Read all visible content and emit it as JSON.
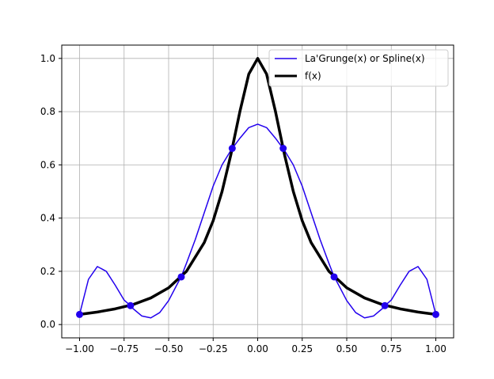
{
  "chart_data": {
    "type": "line",
    "title": "",
    "xlabel": "",
    "ylabel": "",
    "xlim": [
      -1.1,
      1.1
    ],
    "ylim": [
      -0.05,
      1.05
    ],
    "grid": true,
    "legend_position": "top-right",
    "x_ticks": [
      -1.0,
      -0.75,
      -0.5,
      -0.25,
      0.0,
      0.25,
      0.5,
      0.75,
      1.0
    ],
    "x_tick_labels": [
      "−1.00",
      "−0.75",
      "−0.50",
      "−0.25",
      "0.00",
      "0.25",
      "0.50",
      "0.75",
      "1.00"
    ],
    "y_ticks": [
      0.0,
      0.2,
      0.4,
      0.6,
      0.8,
      1.0
    ],
    "y_tick_labels": [
      "0.0",
      "0.2",
      "0.4",
      "0.6",
      "0.8",
      "1.0"
    ],
    "series": [
      {
        "name": "La'Grunge(x) or Spline(x)",
        "color": "#2200ee",
        "line_width": "thin",
        "x": [
          -1.0,
          -0.95,
          -0.9,
          -0.85,
          -0.8,
          -0.75,
          -0.714,
          -0.7,
          -0.65,
          -0.6,
          -0.55,
          -0.5,
          -0.45,
          -0.429,
          -0.4,
          -0.35,
          -0.3,
          -0.25,
          -0.2,
          -0.15,
          -0.143,
          -0.1,
          -0.05,
          0.0,
          0.05,
          0.1,
          0.143,
          0.15,
          0.2,
          0.25,
          0.3,
          0.35,
          0.4,
          0.429,
          0.45,
          0.5,
          0.55,
          0.6,
          0.65,
          0.7,
          0.714,
          0.75,
          0.8,
          0.85,
          0.9,
          0.95,
          1.0
        ],
        "y": [
          0.038,
          0.17,
          0.218,
          0.2,
          0.148,
          0.092,
          0.071,
          0.06,
          0.032,
          0.025,
          0.045,
          0.09,
          0.154,
          0.18,
          0.23,
          0.32,
          0.42,
          0.52,
          0.6,
          0.655,
          0.661,
          0.7,
          0.74,
          0.753,
          0.74,
          0.7,
          0.661,
          0.655,
          0.6,
          0.52,
          0.42,
          0.32,
          0.23,
          0.18,
          0.154,
          0.09,
          0.045,
          0.025,
          0.032,
          0.06,
          0.071,
          0.092,
          0.148,
          0.2,
          0.218,
          0.17,
          0.038
        ]
      },
      {
        "name": "f(x)",
        "color": "#000000",
        "line_width": "thick",
        "function": "1/(1+25x^2)",
        "x": [
          -1.0,
          -0.9,
          -0.8,
          -0.7,
          -0.6,
          -0.5,
          -0.4,
          -0.3,
          -0.25,
          -0.2,
          -0.15,
          -0.1,
          -0.05,
          0.0,
          0.05,
          0.1,
          0.15,
          0.2,
          0.25,
          0.3,
          0.4,
          0.5,
          0.6,
          0.7,
          0.8,
          0.9,
          1.0
        ],
        "y": [
          0.038,
          0.047,
          0.059,
          0.075,
          0.1,
          0.138,
          0.2,
          0.308,
          0.39,
          0.5,
          0.64,
          0.8,
          0.941,
          1.0,
          0.941,
          0.8,
          0.64,
          0.5,
          0.39,
          0.308,
          0.2,
          0.138,
          0.1,
          0.075,
          0.059,
          0.047,
          0.038
        ]
      }
    ],
    "nodes": {
      "color": "#2200ee",
      "x": [
        -1.0,
        -0.714,
        -0.429,
        -0.143,
        0.143,
        0.429,
        0.714,
        1.0
      ],
      "y": [
        0.038,
        0.071,
        0.179,
        0.662,
        0.662,
        0.179,
        0.071,
        0.038
      ]
    }
  }
}
